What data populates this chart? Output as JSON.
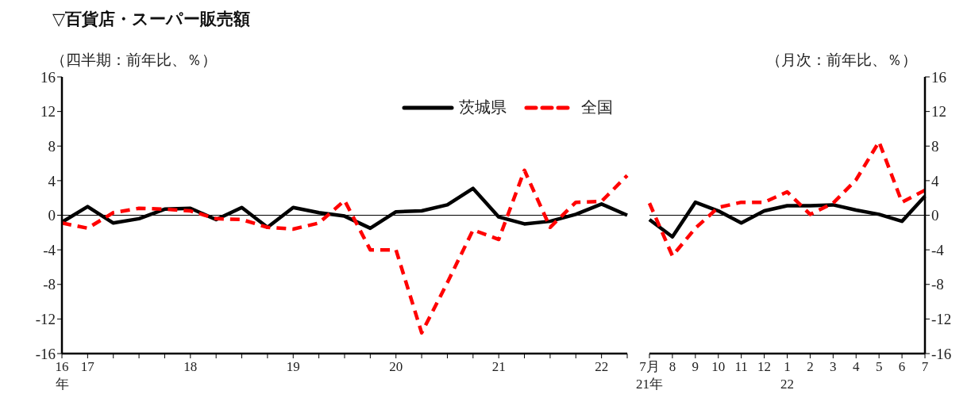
{
  "chart_data": [
    {
      "type": "line",
      "title": "▽百貨店・スーパー販売額",
      "ylabel": "（四半期：前年比、％）",
      "categories": [
        "16\n年",
        "17",
        null,
        null,
        null,
        "18",
        null,
        null,
        null,
        "19",
        null,
        null,
        null,
        "20",
        null,
        null,
        null,
        "21",
        null,
        null,
        null,
        "22",
        null
      ],
      "series": [
        {
          "name": "茨城県",
          "color": "#000000",
          "line_style": "solid",
          "values": [
            -0.8,
            1.0,
            -0.9,
            -0.4,
            0.7,
            0.8,
            -0.5,
            0.9,
            -1.4,
            0.9,
            0.3,
            -0.1,
            -1.5,
            0.4,
            0.5,
            1.2,
            3.1,
            -0.2,
            -1.0,
            -0.7,
            0.1,
            1.3,
            0.0
          ]
        },
        {
          "name": "全国",
          "color": "#ff0000",
          "line_style": "dashed",
          "values": [
            -0.9,
            -1.5,
            0.3,
            0.8,
            0.7,
            0.5,
            -0.4,
            -0.5,
            -1.4,
            -1.6,
            -0.9,
            1.7,
            -4.0,
            -4.0,
            -13.6,
            -7.8,
            -1.7,
            -2.8,
            5.2,
            -1.4,
            1.5,
            1.6,
            4.6
          ]
        }
      ],
      "ylim": [
        -16,
        16
      ],
      "yticks": [
        -16,
        -12,
        -8,
        -4,
        0,
        4,
        8,
        12,
        16
      ],
      "ref_lines": [
        {
          "axis": "y",
          "value": 0
        }
      ],
      "legend": "top right"
    },
    {
      "type": "line",
      "y2label": "（月次：前年比、％）",
      "categories": [
        "7月\n21年",
        "8",
        "9",
        "10",
        "11",
        "12",
        "1\n22",
        "2",
        "3",
        "4",
        "5",
        "6",
        "7"
      ],
      "series": [
        {
          "color": "#000000",
          "line_style": "solid",
          "axis": "y2",
          "values": [
            -0.5,
            -2.5,
            1.5,
            0.5,
            -0.9,
            0.5,
            1.1,
            1.1,
            1.2,
            0.6,
            0.1,
            -0.7,
            2.2
          ]
        },
        {
          "color": "#ff0000",
          "line_style": "dashed",
          "axis": "y2",
          "values": [
            1.4,
            -4.7,
            -1.5,
            0.9,
            1.5,
            1.5,
            2.7,
            0.1,
            1.4,
            4.1,
            8.5,
            1.5,
            2.9
          ]
        }
      ],
      "y2lim": [
        -16,
        16
      ],
      "y2ticks": [
        -16,
        -12,
        -8,
        -4,
        0,
        4,
        8,
        12,
        16
      ],
      "ref_lines": [
        {
          "axis": "y2",
          "value": 0
        }
      ]
    }
  ]
}
